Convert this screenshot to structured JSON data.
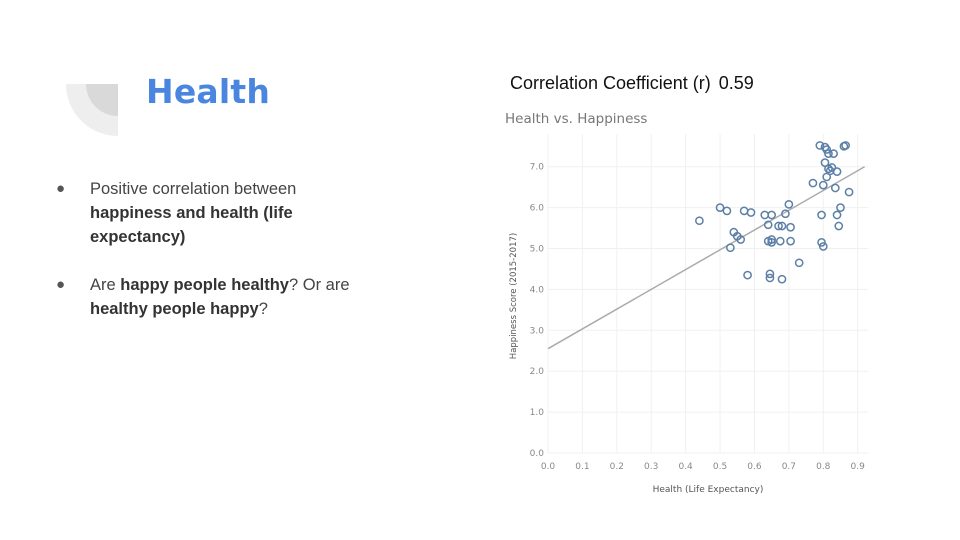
{
  "slide": {
    "title": "Health",
    "bullets": [
      {
        "parts": [
          {
            "text": "Positive correlation between ",
            "bold": false
          },
          {
            "text": "happiness and health (life expectancy)",
            "bold": true
          }
        ]
      },
      {
        "parts": [
          {
            "text": "Are ",
            "bold": false
          },
          {
            "text": "happy people healthy",
            "bold": true
          },
          {
            "text": "? Or are ",
            "bold": false
          },
          {
            "text": "healthy people happy",
            "bold": true
          },
          {
            "text": "?",
            "bold": false
          }
        ]
      }
    ],
    "correlation_label": "Correlation Coefficient (r)",
    "correlation_value": "0.59"
  },
  "colors": {
    "title": "#4a86e0",
    "point_stroke": "#5b7fa6",
    "trend_line": "#aaaaaa",
    "deco_light": "#eeeeee",
    "deco_dark": "#d9d9d9"
  },
  "chart_data": {
    "type": "scatter",
    "title": "Health vs. Happiness",
    "xlabel": "Health (Life Expectancy)",
    "ylabel": "Happiness Score (2015-2017)",
    "xlim": [
      0.0,
      0.93
    ],
    "ylim": [
      0.0,
      7.8
    ],
    "xticks": [
      "0.0",
      "0.1",
      "0.2",
      "0.3",
      "0.4",
      "0.5",
      "0.6",
      "0.7",
      "0.8",
      "0.9"
    ],
    "yticks": [
      "0.0",
      "1.0",
      "2.0",
      "3.0",
      "4.0",
      "5.0",
      "6.0",
      "7.0"
    ],
    "grid": true,
    "trend_line": [
      [
        0.0,
        2.55
      ],
      [
        0.92,
        7.0
      ]
    ],
    "points": [
      [
        0.44,
        5.68
      ],
      [
        0.5,
        6.0
      ],
      [
        0.52,
        5.92
      ],
      [
        0.53,
        5.02
      ],
      [
        0.54,
        5.4
      ],
      [
        0.55,
        5.3
      ],
      [
        0.56,
        5.22
      ],
      [
        0.57,
        5.92
      ],
      [
        0.58,
        4.35
      ],
      [
        0.59,
        5.88
      ],
      [
        0.63,
        5.82
      ],
      [
        0.64,
        5.58
      ],
      [
        0.64,
        5.18
      ],
      [
        0.645,
        4.38
      ],
      [
        0.645,
        4.28
      ],
      [
        0.65,
        5.82
      ],
      [
        0.65,
        5.22
      ],
      [
        0.65,
        5.15
      ],
      [
        0.67,
        5.55
      ],
      [
        0.675,
        5.18
      ],
      [
        0.68,
        5.55
      ],
      [
        0.68,
        4.25
      ],
      [
        0.69,
        5.85
      ],
      [
        0.7,
        6.08
      ],
      [
        0.705,
        5.52
      ],
      [
        0.705,
        5.18
      ],
      [
        0.73,
        4.65
      ],
      [
        0.77,
        6.6
      ],
      [
        0.79,
        7.52
      ],
      [
        0.795,
        5.82
      ],
      [
        0.795,
        5.15
      ],
      [
        0.8,
        5.05
      ],
      [
        0.8,
        6.55
      ],
      [
        0.805,
        7.48
      ],
      [
        0.805,
        7.1
      ],
      [
        0.81,
        6.75
      ],
      [
        0.81,
        7.42
      ],
      [
        0.815,
        7.32
      ],
      [
        0.815,
        6.95
      ],
      [
        0.82,
        6.9
      ],
      [
        0.825,
        6.98
      ],
      [
        0.83,
        7.32
      ],
      [
        0.835,
        6.48
      ],
      [
        0.84,
        5.82
      ],
      [
        0.84,
        6.88
      ],
      [
        0.845,
        5.55
      ],
      [
        0.85,
        6.0
      ],
      [
        0.86,
        7.5
      ],
      [
        0.865,
        7.52
      ],
      [
        0.875,
        6.38
      ]
    ]
  }
}
